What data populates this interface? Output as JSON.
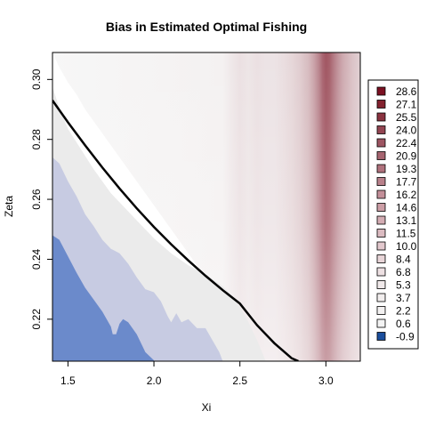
{
  "chart_data": {
    "type": "heatmap",
    "title": "Bias in Estimated Optimal Fishing",
    "xlabel": "Xi",
    "ylabel": "Zeta",
    "xlim": [
      1.41,
      3.2
    ],
    "ylim": [
      0.206,
      0.309
    ],
    "x_ticks": [
      1.5,
      2.0,
      2.5,
      3.0
    ],
    "y_ticks": [
      0.22,
      0.24,
      0.26,
      0.28,
      0.3
    ],
    "x_tick_labels": [
      "1.5",
      "2.0",
      "2.5",
      "3.0"
    ],
    "y_tick_labels": [
      "0.22",
      "0.24",
      "0.26",
      "0.28",
      "0.30"
    ],
    "grid": false,
    "legend_position": "right",
    "legend": [
      {
        "label": "28.6",
        "color": "#7b1022"
      },
      {
        "label": "27.1",
        "color": "#83222f"
      },
      {
        "label": "25.5",
        "color": "#8a3340"
      },
      {
        "label": "24.0",
        "color": "#934552"
      },
      {
        "label": "22.4",
        "color": "#9d5562"
      },
      {
        "label": "20.9",
        "color": "#a66470"
      },
      {
        "label": "19.3",
        "color": "#b0727d"
      },
      {
        "label": "17.7",
        "color": "#b9818b"
      },
      {
        "label": "16.2",
        "color": "#c38f99"
      },
      {
        "label": "14.6",
        "color": "#cc9ea6"
      },
      {
        "label": "13.1",
        "color": "#d4adb4"
      },
      {
        "label": "11.5",
        "color": "#dbbbc1"
      },
      {
        "label": "10.0",
        "color": "#e2c8cd"
      },
      {
        "label": "8.4",
        "color": "#e8d5d8"
      },
      {
        "label": "6.8",
        "color": "#ede0e2"
      },
      {
        "label": "5.3",
        "color": "#f0e9ea"
      },
      {
        "label": "3.7",
        "color": "#f2eeee"
      },
      {
        "label": "2.2",
        "color": "#f3f1f1"
      },
      {
        "label": "0.6",
        "color": "#f3f3f3"
      },
      {
        "label": "-0.9",
        "color": "#1a4e9c"
      }
    ],
    "palette": {
      "dark_blue": "#6b8acb",
      "light_blue": "#c7cbe2",
      "light_grey": "#ebebeb",
      "near_white": "#f5f5f5",
      "white": "#ffffff",
      "peak_red": "#bd7f8b"
    },
    "red_band_bias_profile": {
      "x": [
        2.4,
        2.45,
        2.5,
        2.55,
        2.6,
        2.65,
        2.7,
        2.75,
        2.8,
        2.85,
        2.9,
        2.93,
        2.96,
        2.98,
        3.0,
        3.02,
        3.04,
        3.07,
        3.1,
        3.15,
        3.2
      ],
      "bias": [
        0.8,
        2.0,
        3.0,
        2.4,
        3.0,
        2.6,
        2.6,
        3.2,
        4.2,
        5.6,
        8.0,
        11.0,
        15.0,
        19.0,
        21.0,
        20.0,
        17.0,
        13.0,
        10.0,
        7.0,
        5.0
      ]
    },
    "region_boundaries": [
      {
        "name": "dark_blue_region",
        "x": [
          1.41,
          1.45,
          1.5,
          1.55,
          1.6,
          1.65,
          1.7,
          1.75,
          1.76,
          1.78,
          1.8,
          1.82,
          1.85,
          1.9,
          1.95,
          2.0,
          2.0
        ],
        "y": [
          0.248,
          0.2465,
          0.241,
          0.2355,
          0.2305,
          0.2265,
          0.2225,
          0.2175,
          0.215,
          0.215,
          0.2185,
          0.22,
          0.219,
          0.215,
          0.209,
          0.2063,
          0.206
        ]
      },
      {
        "name": "light_blue_region",
        "x": [
          1.41,
          1.45,
          1.5,
          1.55,
          1.6,
          1.65,
          1.7,
          1.75,
          1.8,
          1.85,
          1.9,
          1.95,
          2.0,
          2.04,
          2.08,
          2.1,
          2.13,
          2.16,
          2.2,
          2.25,
          2.3,
          2.35,
          2.38,
          2.4
        ],
        "y": [
          0.274,
          0.272,
          0.266,
          0.261,
          0.255,
          0.251,
          0.2465,
          0.2435,
          0.242,
          0.2385,
          0.234,
          0.23,
          0.229,
          0.226,
          0.221,
          0.219,
          0.222,
          0.219,
          0.22,
          0.217,
          0.217,
          0.212,
          0.209,
          0.206
        ]
      },
      {
        "name": "light_grey_region",
        "x": [
          1.41,
          1.45,
          1.5,
          1.55,
          1.6,
          1.65,
          1.7,
          1.75,
          1.8,
          1.9,
          2.0,
          2.1,
          2.2,
          2.3,
          2.35,
          2.4,
          2.45,
          2.5,
          2.55,
          2.6,
          2.65
        ],
        "y": [
          0.2975,
          0.2905,
          0.2835,
          0.279,
          0.2745,
          0.27,
          0.266,
          0.262,
          0.259,
          0.253,
          0.247,
          0.242,
          0.238,
          0.235,
          0.233,
          0.231,
          0.228,
          0.224,
          0.219,
          0.213,
          0.206
        ]
      },
      {
        "name": "near_white_region",
        "x": [
          1.41,
          1.45,
          1.5,
          1.55,
          1.6,
          1.7,
          1.8,
          1.9,
          2.0,
          2.1,
          2.2,
          2.3,
          2.38,
          2.42,
          2.44,
          2.46,
          2.5
        ],
        "y": [
          0.309,
          0.304,
          0.299,
          0.295,
          0.29,
          0.282,
          0.274,
          0.266,
          0.258,
          0.25,
          0.242,
          0.234,
          0.227,
          0.221,
          0.215,
          0.208,
          0.206
        ]
      }
    ],
    "reference_curve": {
      "x": [
        1.41,
        1.5,
        1.6,
        1.7,
        1.8,
        1.9,
        2.0,
        2.1,
        2.2,
        2.3,
        2.4,
        2.5,
        2.6,
        2.7,
        2.8,
        2.84
      ],
      "zeta": [
        0.293,
        0.2857,
        0.278,
        0.2706,
        0.2636,
        0.257,
        0.2508,
        0.245,
        0.2396,
        0.2345,
        0.2297,
        0.2252,
        0.218,
        0.212,
        0.207,
        0.206
      ]
    }
  }
}
